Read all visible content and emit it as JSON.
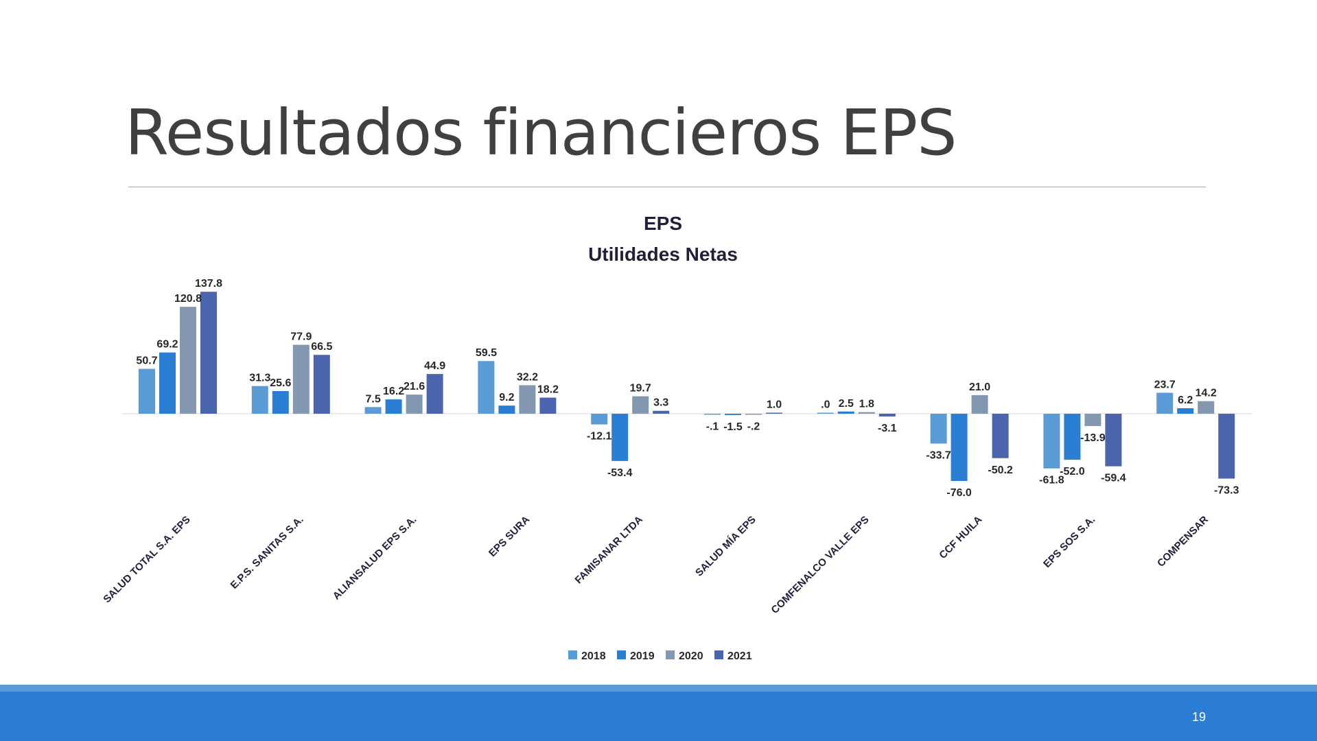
{
  "slide": {
    "title": "Resultados financieros EPS",
    "page_number": "19"
  },
  "colors": {
    "2018": "#5b9bd5",
    "2019": "#2a7fd4",
    "2020": "#8497b0",
    "2021": "#4a64ae",
    "footer": "#2a7cd4",
    "footer_accent": "#5b9bd5"
  },
  "chart_data": {
    "type": "bar",
    "title": "EPS",
    "subtitle": "Utilidades Netas",
    "xlabel": "",
    "ylabel": "",
    "legend_position": "bottom",
    "grid": false,
    "categories": [
      "SALUD TOTAL S.A. EPS",
      "E.P.S. SANITAS S.A.",
      "ALIANSALUD EPS S.A.",
      "EPS  SURA",
      "FAMISANAR  LTDA",
      "SALUD MÍA EPS",
      "COMFENALCO VALLE EPS",
      "CCF HUILA",
      "EPS SOS S.A.",
      "COMPENSAR"
    ],
    "series": [
      {
        "name": "2018",
        "values": [
          50.7,
          31.3,
          7.5,
          59.5,
          -12.1,
          -0.1,
          0.0,
          -33.7,
          -61.8,
          23.7
        ],
        "labels": [
          "50.7",
          "31.3",
          "7.5",
          "59.5",
          "-12.1",
          "-.1",
          ".0",
          "-33.7",
          "-61.8",
          "23.7"
        ]
      },
      {
        "name": "2019",
        "values": [
          69.2,
          25.6,
          16.2,
          9.2,
          -53.4,
          -1.5,
          2.5,
          -76.0,
          -52.0,
          6.2
        ],
        "labels": [
          "69.2",
          "25.6",
          "16.2",
          "9.2",
          "-53.4",
          "-1.5",
          "2.5",
          "-76.0",
          "-52.0",
          "6.2"
        ]
      },
      {
        "name": "2020",
        "values": [
          120.8,
          77.9,
          21.6,
          32.2,
          19.7,
          -0.2,
          1.8,
          21.0,
          -13.9,
          14.2
        ],
        "labels": [
          "120.8",
          "77.9",
          "21.6",
          "32.2",
          "19.7",
          "-.2",
          "1.8",
          "21.0",
          "-13.9",
          "14.2"
        ]
      },
      {
        "name": "2021",
        "values": [
          137.8,
          66.5,
          44.9,
          18.2,
          3.3,
          1.0,
          -3.1,
          -50.2,
          -59.4,
          -73.3
        ],
        "labels": [
          "137.8",
          "66.5",
          "44.9",
          "18.2",
          "3.3",
          "1.0",
          "-3.1",
          "-50.2",
          "-59.4",
          "-73.3"
        ]
      }
    ]
  }
}
